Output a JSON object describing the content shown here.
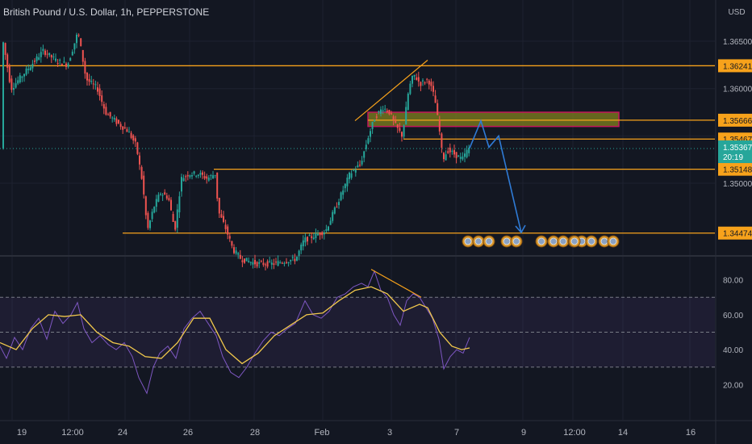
{
  "symbol_title": "British Pound / U.S. Dollar, 1h, PEPPERSTONE",
  "currency": "USD",
  "colors": {
    "background": "#131722",
    "up": "#26a69a",
    "down": "#ef5350",
    "level": "#f7a21b",
    "projection": "#2f7bd6",
    "rsi": "#7e57c2",
    "rsi_ma": "#f2c94c",
    "zone_fill": "#7a7a1e",
    "zone_border": "#c2185b",
    "current_price": "#26a69a",
    "axis_text": "#b2b5be"
  },
  "price_axis": {
    "ticks": [
      "1.36500",
      "1.36000",
      "1.35500",
      "1.35000"
    ],
    "level_labels": [
      "1.36241",
      "1.35666",
      "1.35467",
      "1.35148",
      "1.34474"
    ],
    "current_price": "1.35367",
    "countdown": "20:19"
  },
  "time_axis": {
    "labels": [
      "19",
      "12:00",
      "24",
      "26",
      "28",
      "Feb",
      "3",
      "7",
      "9",
      "12:00",
      "14",
      "16"
    ]
  },
  "rsi_axis": {
    "ticks": [
      "80.00",
      "60.00",
      "40.00",
      "20.00"
    ]
  },
  "chart_data": [
    {
      "type": "candlestick",
      "title": "British Pound / U.S. Dollar, 1h, PEPPERSTONE",
      "ylim": [
        1.3425,
        1.3685
      ],
      "horizontal_levels": [
        1.36241,
        1.35467,
        1.35148,
        1.34474
      ],
      "supply_zone": [
        1.356,
        1.3575
      ],
      "current_price": 1.35367,
      "price_path": [
        {
          "x": 4,
          "price": 1.3655
        },
        {
          "x": 15,
          "price": 1.36
        },
        {
          "x": 25,
          "price": 1.361
        },
        {
          "x": 40,
          "price": 1.3625
        },
        {
          "x": 55,
          "price": 1.364
        },
        {
          "x": 70,
          "price": 1.363
        },
        {
          "x": 85,
          "price": 1.3625
        },
        {
          "x": 98,
          "price": 1.366
        },
        {
          "x": 108,
          "price": 1.361
        },
        {
          "x": 122,
          "price": 1.36
        },
        {
          "x": 132,
          "price": 1.3575
        },
        {
          "x": 145,
          "price": 1.3565
        },
        {
          "x": 160,
          "price": 1.3555
        },
        {
          "x": 170,
          "price": 1.354
        },
        {
          "x": 178,
          "price": 1.35
        },
        {
          "x": 184,
          "price": 1.345
        },
        {
          "x": 192,
          "price": 1.3475
        },
        {
          "x": 200,
          "price": 1.349
        },
        {
          "x": 210,
          "price": 1.3485
        },
        {
          "x": 218,
          "price": 1.345
        },
        {
          "x": 226,
          "price": 1.3505
        },
        {
          "x": 235,
          "price": 1.351
        },
        {
          "x": 248,
          "price": 1.351
        },
        {
          "x": 258,
          "price": 1.3505
        },
        {
          "x": 268,
          "price": 1.351
        },
        {
          "x": 272,
          "price": 1.347
        },
        {
          "x": 282,
          "price": 1.345
        },
        {
          "x": 290,
          "price": 1.343
        },
        {
          "x": 300,
          "price": 1.342
        },
        {
          "x": 320,
          "price": 1.3415
        },
        {
          "x": 340,
          "price": 1.3415
        },
        {
          "x": 355,
          "price": 1.3418
        },
        {
          "x": 368,
          "price": 1.342
        },
        {
          "x": 378,
          "price": 1.344
        },
        {
          "x": 392,
          "price": 1.3445
        },
        {
          "x": 405,
          "price": 1.345
        },
        {
          "x": 415,
          "price": 1.347
        },
        {
          "x": 425,
          "price": 1.349
        },
        {
          "x": 435,
          "price": 1.351
        },
        {
          "x": 448,
          "price": 1.352
        },
        {
          "x": 458,
          "price": 1.355
        },
        {
          "x": 466,
          "price": 1.357
        },
        {
          "x": 476,
          "price": 1.358
        },
        {
          "x": 484,
          "price": 1.3575
        },
        {
          "x": 492,
          "price": 1.356
        },
        {
          "x": 500,
          "price": 1.355
        },
        {
          "x": 508,
          "price": 1.36
        },
        {
          "x": 514,
          "price": 1.3615
        },
        {
          "x": 522,
          "price": 1.3605
        },
        {
          "x": 532,
          "price": 1.361
        },
        {
          "x": 540,
          "price": 1.359
        },
        {
          "x": 546,
          "price": 1.3555
        },
        {
          "x": 550,
          "price": 1.3525
        },
        {
          "x": 556,
          "price": 1.3535
        },
        {
          "x": 566,
          "price": 1.353
        },
        {
          "x": 574,
          "price": 1.3525
        },
        {
          "x": 582,
          "price": 1.3537
        }
      ],
      "projection_path": [
        {
          "x": 582,
          "price": 1.3537
        },
        {
          "x": 596,
          "price": 1.3566
        },
        {
          "x": 606,
          "price": 1.3538
        },
        {
          "x": 618,
          "price": 1.355
        },
        {
          "x": 646,
          "price": 1.3448
        }
      ],
      "trendline": [
        {
          "x": 440,
          "price": 1.3566
        },
        {
          "x": 530,
          "price": 1.363
        }
      ],
      "event_markers": 14
    },
    {
      "type": "line",
      "title": "RSI",
      "ylim": [
        10,
        90
      ],
      "bands": [
        30,
        50,
        70
      ],
      "series": [
        {
          "color": "#7e57c2",
          "points": [
            {
              "x": 0,
              "y": 42
            },
            {
              "x": 8,
              "y": 35
            },
            {
              "x": 18,
              "y": 47
            },
            {
              "x": 28,
              "y": 40
            },
            {
              "x": 38,
              "y": 52
            },
            {
              "x": 48,
              "y": 58
            },
            {
              "x": 58,
              "y": 46
            },
            {
              "x": 68,
              "y": 62
            },
            {
              "x": 78,
              "y": 55
            },
            {
              "x": 88,
              "y": 60
            },
            {
              "x": 96,
              "y": 67
            },
            {
              "x": 104,
              "y": 52
            },
            {
              "x": 114,
              "y": 44
            },
            {
              "x": 124,
              "y": 48
            },
            {
              "x": 134,
              "y": 43
            },
            {
              "x": 144,
              "y": 40
            },
            {
              "x": 154,
              "y": 44
            },
            {
              "x": 164,
              "y": 36
            },
            {
              "x": 172,
              "y": 24
            },
            {
              "x": 182,
              "y": 15
            },
            {
              "x": 190,
              "y": 30
            },
            {
              "x": 198,
              "y": 38
            },
            {
              "x": 208,
              "y": 42
            },
            {
              "x": 218,
              "y": 35
            },
            {
              "x": 228,
              "y": 52
            },
            {
              "x": 238,
              "y": 58
            },
            {
              "x": 248,
              "y": 62
            },
            {
              "x": 258,
              "y": 55
            },
            {
              "x": 268,
              "y": 48
            },
            {
              "x": 276,
              "y": 36
            },
            {
              "x": 286,
              "y": 27
            },
            {
              "x": 296,
              "y": 24
            },
            {
              "x": 306,
              "y": 30
            },
            {
              "x": 316,
              "y": 38
            },
            {
              "x": 326,
              "y": 45
            },
            {
              "x": 336,
              "y": 50
            },
            {
              "x": 346,
              "y": 48
            },
            {
              "x": 356,
              "y": 52
            },
            {
              "x": 366,
              "y": 55
            },
            {
              "x": 378,
              "y": 68
            },
            {
              "x": 388,
              "y": 60
            },
            {
              "x": 398,
              "y": 58
            },
            {
              "x": 408,
              "y": 62
            },
            {
              "x": 418,
              "y": 70
            },
            {
              "x": 428,
              "y": 72
            },
            {
              "x": 438,
              "y": 76
            },
            {
              "x": 448,
              "y": 78
            },
            {
              "x": 456,
              "y": 76
            },
            {
              "x": 464,
              "y": 85
            },
            {
              "x": 472,
              "y": 74
            },
            {
              "x": 480,
              "y": 70
            },
            {
              "x": 488,
              "y": 60
            },
            {
              "x": 496,
              "y": 54
            },
            {
              "x": 504,
              "y": 68
            },
            {
              "x": 512,
              "y": 72
            },
            {
              "x": 520,
              "y": 70
            },
            {
              "x": 528,
              "y": 64
            },
            {
              "x": 536,
              "y": 58
            },
            {
              "x": 544,
              "y": 46
            },
            {
              "x": 550,
              "y": 29
            },
            {
              "x": 558,
              "y": 36
            },
            {
              "x": 566,
              "y": 40
            },
            {
              "x": 574,
              "y": 38
            },
            {
              "x": 582,
              "y": 47
            }
          ]
        },
        {
          "color": "#f2c94c",
          "points": [
            {
              "x": 0,
              "y": 44
            },
            {
              "x": 20,
              "y": 40
            },
            {
              "x": 40,
              "y": 52
            },
            {
              "x": 60,
              "y": 60
            },
            {
              "x": 80,
              "y": 59
            },
            {
              "x": 100,
              "y": 60
            },
            {
              "x": 120,
              "y": 50
            },
            {
              "x": 140,
              "y": 44
            },
            {
              "x": 160,
              "y": 42
            },
            {
              "x": 180,
              "y": 36
            },
            {
              "x": 200,
              "y": 35
            },
            {
              "x": 220,
              "y": 44
            },
            {
              "x": 240,
              "y": 58
            },
            {
              "x": 260,
              "y": 58
            },
            {
              "x": 280,
              "y": 40
            },
            {
              "x": 300,
              "y": 32
            },
            {
              "x": 320,
              "y": 38
            },
            {
              "x": 340,
              "y": 48
            },
            {
              "x": 360,
              "y": 54
            },
            {
              "x": 380,
              "y": 60
            },
            {
              "x": 400,
              "y": 61
            },
            {
              "x": 420,
              "y": 68
            },
            {
              "x": 440,
              "y": 74
            },
            {
              "x": 460,
              "y": 76
            },
            {
              "x": 480,
              "y": 72
            },
            {
              "x": 500,
              "y": 62
            },
            {
              "x": 520,
              "y": 66
            },
            {
              "x": 530,
              "y": 64
            },
            {
              "x": 545,
              "y": 50
            },
            {
              "x": 560,
              "y": 42
            },
            {
              "x": 572,
              "y": 40
            },
            {
              "x": 582,
              "y": 41
            }
          ]
        }
      ],
      "trendline": [
        {
          "x": 460,
          "y": 86
        },
        {
          "x": 522,
          "y": 70
        }
      ]
    }
  ]
}
